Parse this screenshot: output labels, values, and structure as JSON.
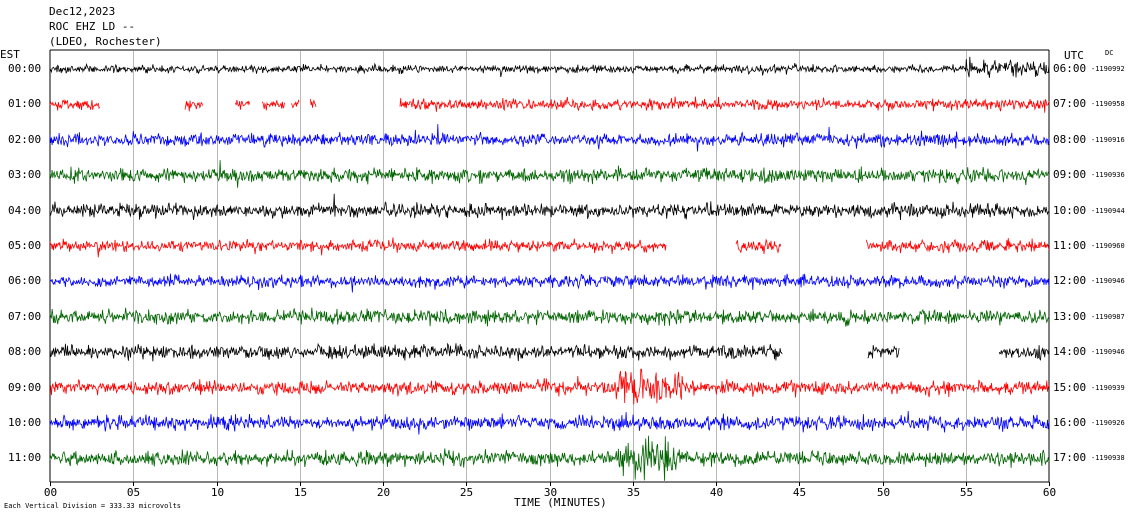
{
  "header": {
    "date": "Dec12,2023",
    "station": "ROC EHZ LD --",
    "network": "(LDEO, Rochester)"
  },
  "left_axis_title": "EST",
  "right_axis_title": "UTC",
  "dc_label": "DC",
  "x_axis_title": "TIME (MINUTES)",
  "scale_note": "Each Vertical Division = 333.33 microvolts",
  "colors": {
    "black": "#000000",
    "red": "#ff0000",
    "blue": "#0000ff",
    "green": "#006400"
  },
  "chart_data": {
    "type": "line",
    "title": "Dec12,2023",
    "xlabel": "TIME (MINUTES)",
    "xlim": [
      0,
      60
    ],
    "x_ticks": [
      "00",
      "05",
      "10",
      "15",
      "20",
      "25",
      "30",
      "35",
      "40",
      "45",
      "50",
      "55",
      "60"
    ],
    "grid": "vertical lines every 5 minutes",
    "series": [
      {
        "est": "00:00",
        "utc": "06:00",
        "dc": "-1190992",
        "color": "black",
        "activity": 0.45,
        "gaps": []
      },
      {
        "est": "01:00",
        "utc": "07:00",
        "dc": "-1190958",
        "color": "red",
        "activity": 0.6,
        "gaps": [
          [
            3.0,
            8.1
          ],
          [
            9.2,
            11.1
          ],
          [
            12.0,
            12.7
          ],
          [
            14.1,
            14.5
          ],
          [
            15.0,
            15.6
          ],
          [
            16.0,
            21.0
          ]
        ]
      },
      {
        "est": "02:00",
        "utc": "08:00",
        "dc": "-1190916",
        "color": "blue",
        "activity": 0.75,
        "gaps": []
      },
      {
        "est": "03:00",
        "utc": "09:00",
        "dc": "-1190936",
        "color": "green",
        "activity": 0.8,
        "gaps": []
      },
      {
        "est": "04:00",
        "utc": "10:00",
        "dc": "-1190944",
        "color": "black",
        "activity": 0.8,
        "gaps": []
      },
      {
        "est": "05:00",
        "utc": "11:00",
        "dc": "-1190960",
        "color": "red",
        "activity": 0.65,
        "gaps": [
          [
            37.0,
            41.2
          ],
          [
            43.9,
            49.0
          ]
        ]
      },
      {
        "est": "06:00",
        "utc": "12:00",
        "dc": "-1190946",
        "color": "blue",
        "activity": 0.7,
        "gaps": []
      },
      {
        "est": "07:00",
        "utc": "13:00",
        "dc": "-1190987",
        "color": "green",
        "activity": 0.8,
        "gaps": []
      },
      {
        "est": "08:00",
        "utc": "14:00",
        "dc": "-1190946",
        "color": "black",
        "activity": 0.8,
        "gaps": [
          [
            44.0,
            49.1
          ],
          [
            51.0,
            57.0
          ]
        ]
      },
      {
        "est": "09:00",
        "utc": "15:00",
        "dc": "-1190939",
        "color": "red",
        "activity": 0.75,
        "gaps": []
      },
      {
        "est": "10:00",
        "utc": "16:00",
        "dc": "-1190926",
        "color": "blue",
        "activity": 0.8,
        "gaps": []
      },
      {
        "est": "11:00",
        "utc": "17:00",
        "dc": "-1190938",
        "color": "green",
        "activity": 0.8,
        "gaps": []
      }
    ]
  }
}
